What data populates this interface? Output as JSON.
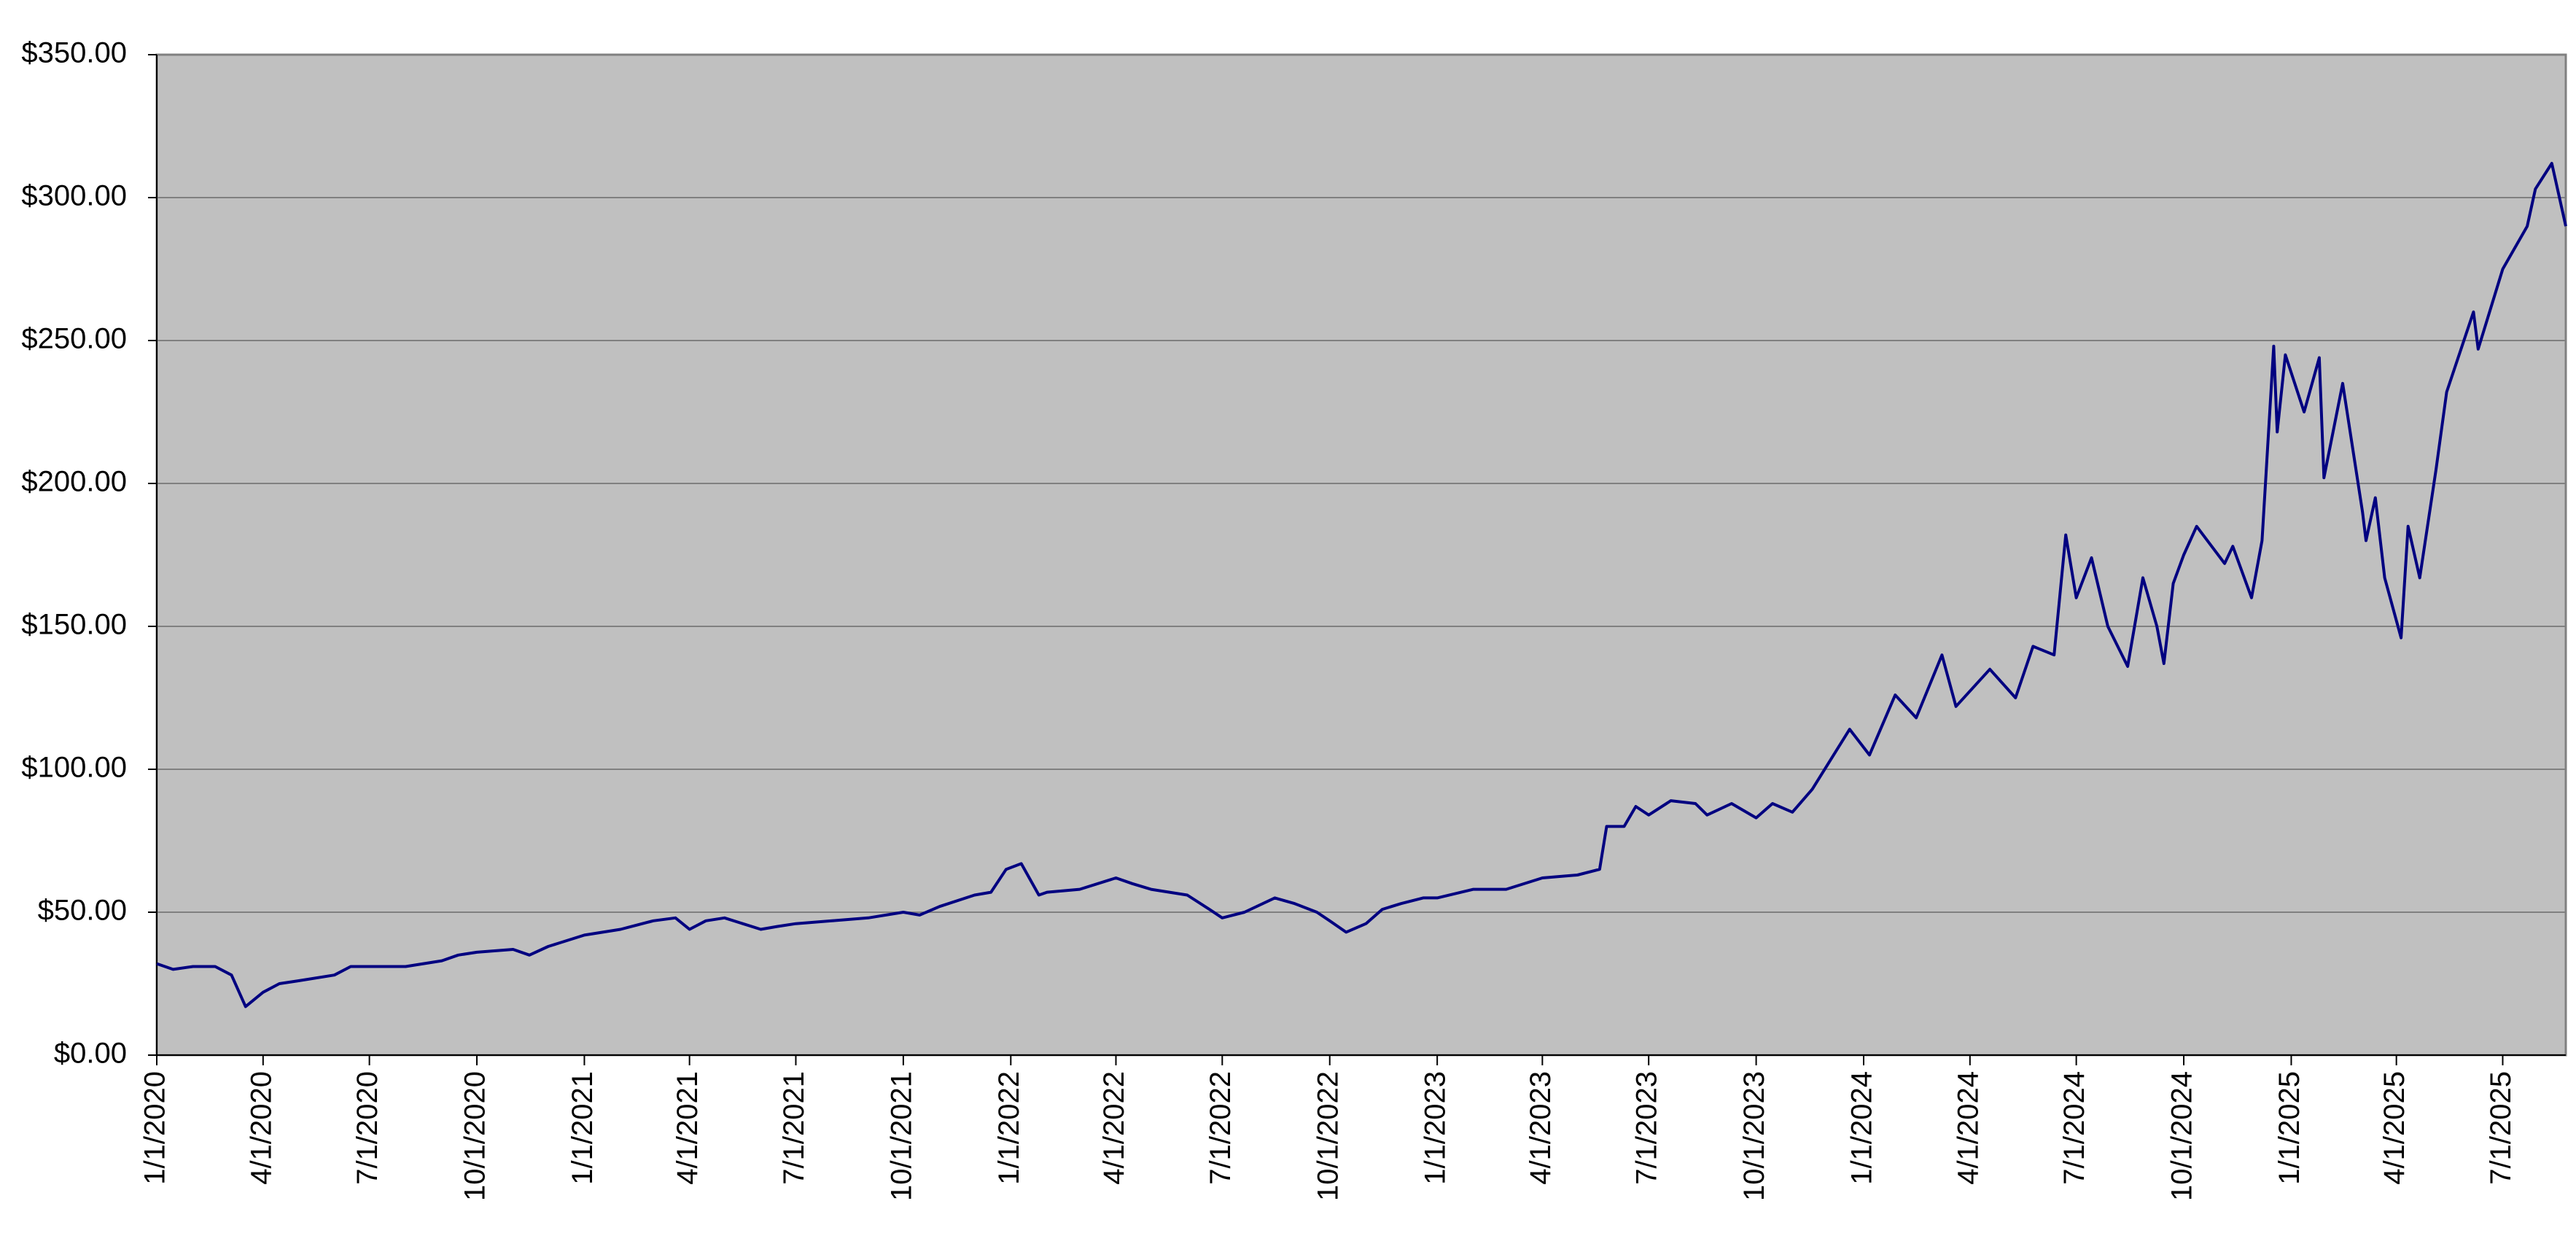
{
  "chart_data": {
    "type": "line",
    "x": [
      "2020-01-01",
      "2020-01-15",
      "2020-02-01",
      "2020-02-20",
      "2020-03-05",
      "2020-03-17",
      "2020-04-01",
      "2020-04-15",
      "2020-05-01",
      "2020-06-01",
      "2020-06-15",
      "2020-07-01",
      "2020-08-01",
      "2020-09-01",
      "2020-09-15",
      "2020-10-01",
      "2020-11-01",
      "2020-11-15",
      "2020-12-01",
      "2021-01-01",
      "2021-02-01",
      "2021-03-01",
      "2021-03-20",
      "2021-04-01",
      "2021-04-15",
      "2021-05-01",
      "2021-06-01",
      "2021-06-15",
      "2021-07-01",
      "2021-08-01",
      "2021-09-01",
      "2021-10-01",
      "2021-10-15",
      "2021-11-01",
      "2021-12-01",
      "2021-12-15",
      "2021-12-28",
      "2022-01-10",
      "2022-01-25",
      "2022-02-01",
      "2022-03-01",
      "2022-04-01",
      "2022-04-15",
      "2022-05-01",
      "2022-06-01",
      "2022-06-20",
      "2022-07-01",
      "2022-07-20",
      "2022-08-15",
      "2022-09-01",
      "2022-09-20",
      "2022-10-01",
      "2022-10-15",
      "2022-11-01",
      "2022-11-15",
      "2022-12-01",
      "2022-12-20",
      "2023-01-01",
      "2023-02-01",
      "2023-03-01",
      "2023-04-01",
      "2023-05-01",
      "2023-05-20",
      "2023-05-26",
      "2023-06-10",
      "2023-06-20",
      "2023-07-01",
      "2023-07-20",
      "2023-08-10",
      "2023-08-20",
      "2023-09-10",
      "2023-10-01",
      "2023-10-15",
      "2023-11-01",
      "2023-11-18",
      "2023-12-20",
      "2024-01-06",
      "2024-01-28",
      "2024-02-15",
      "2024-03-08",
      "2024-03-20",
      "2024-04-18",
      "2024-05-10",
      "2024-05-25",
      "2024-06-12",
      "2024-06-22",
      "2024-07-01",
      "2024-07-14",
      "2024-07-28",
      "2024-08-14",
      "2024-08-27",
      "2024-09-08",
      "2024-09-14",
      "2024-09-22",
      "2024-10-01",
      "2024-10-12",
      "2024-11-05",
      "2024-11-12",
      "2024-11-28",
      "2024-12-07",
      "2024-12-17",
      "2024-12-20",
      "2024-12-27",
      "2025-01-12",
      "2025-01-25",
      "2025-01-29",
      "2025-02-14",
      "2025-03-03",
      "2025-03-06",
      "2025-03-14",
      "2025-03-22",
      "2025-04-05",
      "2025-04-11",
      "2025-04-21",
      "2025-05-05",
      "2025-05-14",
      "2025-06-06",
      "2025-06-10",
      "2025-07-01",
      "2025-07-22",
      "2025-07-29",
      "2025-08-12",
      "2025-08-24"
    ],
    "series": [
      {
        "color": "#000080",
        "values": [
          32,
          30,
          31,
          31,
          28,
          17,
          22,
          25,
          26,
          28,
          31,
          31,
          31,
          33,
          35,
          36,
          37,
          35,
          38,
          42,
          44,
          47,
          48,
          44,
          47,
          48,
          44,
          45,
          46,
          47,
          48,
          50,
          49,
          52,
          56,
          57,
          65,
          67,
          56,
          57,
          58,
          62,
          60,
          58,
          56,
          51,
          48,
          50,
          55,
          53,
          50,
          47,
          43,
          46,
          51,
          53,
          55,
          55,
          58,
          58,
          62,
          63,
          65,
          80,
          80,
          87,
          84,
          89,
          88,
          84,
          88,
          83,
          88,
          85,
          93,
          114,
          105,
          126,
          118,
          140,
          122,
          135,
          125,
          143,
          140,
          182,
          160,
          174,
          150,
          136,
          167,
          150,
          137,
          165,
          175,
          185,
          172,
          178,
          160,
          180,
          248,
          218,
          245,
          225,
          244,
          202,
          235,
          190,
          180,
          195,
          167,
          146,
          185,
          167,
          205,
          232,
          260,
          247,
          275,
          290,
          303,
          312,
          290
        ]
      }
    ],
    "xlim": [
      "2020-01-01",
      "2025-08-24"
    ],
    "xticks": [
      {
        "value": "2020-01-01",
        "label": "1/1/2020"
      },
      {
        "value": "2020-04-01",
        "label": "4/1/2020"
      },
      {
        "value": "2020-07-01",
        "label": "7/1/2020"
      },
      {
        "value": "2020-10-01",
        "label": "10/1/2020"
      },
      {
        "value": "2021-01-01",
        "label": "1/1/2021"
      },
      {
        "value": "2021-04-01",
        "label": "4/1/2021"
      },
      {
        "value": "2021-07-01",
        "label": "7/1/2021"
      },
      {
        "value": "2021-10-01",
        "label": "10/1/2021"
      },
      {
        "value": "2022-01-01",
        "label": "1/1/2022"
      },
      {
        "value": "2022-04-01",
        "label": "4/1/2022"
      },
      {
        "value": "2022-07-01",
        "label": "7/1/2022"
      },
      {
        "value": "2022-10-01",
        "label": "10/1/2022"
      },
      {
        "value": "2023-01-01",
        "label": "1/1/2023"
      },
      {
        "value": "2023-04-01",
        "label": "4/1/2023"
      },
      {
        "value": "2023-07-01",
        "label": "7/1/2023"
      },
      {
        "value": "2023-10-01",
        "label": "10/1/2023"
      },
      {
        "value": "2024-01-01",
        "label": "1/1/2024"
      },
      {
        "value": "2024-04-01",
        "label": "4/1/2024"
      },
      {
        "value": "2024-07-01",
        "label": "7/1/2024"
      },
      {
        "value": "2024-10-01",
        "label": "10/1/2024"
      },
      {
        "value": "2025-01-01",
        "label": "1/1/2025"
      },
      {
        "value": "2025-04-01",
        "label": "4/1/2025"
      },
      {
        "value": "2025-07-01",
        "label": "7/1/2025"
      }
    ],
    "ylim": [
      0,
      350
    ],
    "yticks": [
      {
        "value": 0,
        "label": "$0.00"
      },
      {
        "value": 50,
        "label": "$50.00"
      },
      {
        "value": 100,
        "label": "$100.00"
      },
      {
        "value": 150,
        "label": "$150.00"
      },
      {
        "value": 200,
        "label": "$200.00"
      },
      {
        "value": 250,
        "label": "$250.00"
      },
      {
        "value": 300,
        "label": "$300.00"
      },
      {
        "value": 350,
        "label": "$350.00"
      }
    ],
    "grid": true
  }
}
